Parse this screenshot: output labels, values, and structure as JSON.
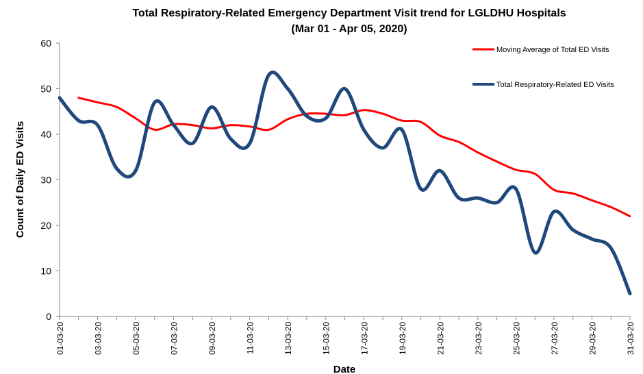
{
  "chart_data": {
    "type": "line",
    "title": "Total Respiratory-Related Emergency Department Visit trend for LGLDHU Hospitals",
    "subtitle": "(Mar 01 - Apr 05, 2020)",
    "x_label": "Date",
    "y_label": "Count of Daily ED Visits",
    "categories": [
      "01-03-20",
      null,
      "03-03-20",
      null,
      "05-03-20",
      null,
      "07-03-20",
      null,
      "09-03-20",
      null,
      "11-03-20",
      null,
      "13-03-20",
      null,
      "15-03-20",
      null,
      "17-03-20",
      null,
      "19-03-20",
      null,
      "21-03-20",
      null,
      "23-03-20",
      null,
      "25-03-20",
      null,
      "27-03-20",
      null,
      "29-03-20",
      null,
      "31-03-20"
    ],
    "series": [
      {
        "name": "Moving Average of Total ED Visits",
        "color": "#ff0000",
        "values": [
          null,
          48,
          47,
          46,
          43.5,
          41,
          42.2,
          42,
          41.3,
          42,
          41.7,
          41,
          43.3,
          44.5,
          44.5,
          44.2,
          45.3,
          44.5,
          43,
          42.7,
          39.7,
          38.3,
          36,
          34,
          32.2,
          31.3,
          27.8,
          27,
          25.5,
          24,
          22
        ]
      },
      {
        "name": "Total Respiratory-Related ED Visits",
        "color": "#1f497d",
        "values": [
          48,
          43,
          42,
          32.5,
          32,
          47,
          42,
          38,
          46,
          39,
          38,
          53,
          50,
          44,
          43.5,
          50,
          41,
          37,
          41,
          28,
          32,
          26,
          26,
          25,
          28,
          14,
          23,
          19,
          17,
          15,
          5
        ]
      }
    ],
    "ylim": [
      0,
      60
    ],
    "yticks": [
      0,
      10,
      20,
      30,
      40,
      50,
      60
    ],
    "grid": false,
    "legend": "top-right"
  }
}
